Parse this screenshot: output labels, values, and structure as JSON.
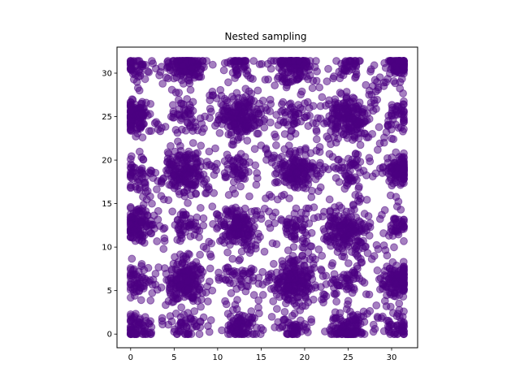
{
  "chart_data": {
    "type": "scatter",
    "title": "Nested sampling",
    "xlabel": "",
    "ylabel": "",
    "xlim": [
      -1.57,
      32.99
    ],
    "ylim": [
      -1.57,
      32.99
    ],
    "xticks": [
      0,
      5,
      10,
      15,
      20,
      25,
      30
    ],
    "yticks": [
      0,
      5,
      10,
      15,
      20,
      25,
      30
    ],
    "grid": false,
    "legend": "none",
    "marker_color": "#4b0082",
    "marker_alpha": 0.5,
    "clusters": [
      {
        "x": 0.6,
        "y": 0.6,
        "n": 70,
        "spread": 0.9
      },
      {
        "x": 6.4,
        "y": 0.6,
        "n": 40,
        "spread": 0.9
      },
      {
        "x": 12.5,
        "y": 0.6,
        "n": 90,
        "spread": 0.9
      },
      {
        "x": 18.7,
        "y": 0.6,
        "n": 40,
        "spread": 0.9
      },
      {
        "x": 25.0,
        "y": 0.6,
        "n": 110,
        "spread": 1.0
      },
      {
        "x": 31.0,
        "y": 0.6,
        "n": 40,
        "spread": 0.8
      },
      {
        "x": 0.6,
        "y": 6.3,
        "n": 50,
        "spread": 0.9
      },
      {
        "x": 6.3,
        "y": 6.1,
        "n": 180,
        "spread": 1.2
      },
      {
        "x": 12.5,
        "y": 6.3,
        "n": 40,
        "spread": 0.9
      },
      {
        "x": 18.7,
        "y": 6.0,
        "n": 190,
        "spread": 1.3
      },
      {
        "x": 25.0,
        "y": 6.3,
        "n": 40,
        "spread": 0.9
      },
      {
        "x": 30.9,
        "y": 6.2,
        "n": 130,
        "spread": 0.9
      },
      {
        "x": 0.6,
        "y": 12.5,
        "n": 110,
        "spread": 0.9
      },
      {
        "x": 6.3,
        "y": 12.5,
        "n": 40,
        "spread": 0.9
      },
      {
        "x": 12.4,
        "y": 12.5,
        "n": 150,
        "spread": 1.1
      },
      {
        "x": 18.7,
        "y": 12.5,
        "n": 40,
        "spread": 0.9
      },
      {
        "x": 24.8,
        "y": 12.0,
        "n": 160,
        "spread": 1.2
      },
      {
        "x": 30.9,
        "y": 12.5,
        "n": 40,
        "spread": 0.8
      },
      {
        "x": 0.6,
        "y": 18.7,
        "n": 40,
        "spread": 0.9
      },
      {
        "x": 6.3,
        "y": 18.7,
        "n": 170,
        "spread": 1.2
      },
      {
        "x": 12.5,
        "y": 18.7,
        "n": 40,
        "spread": 0.9
      },
      {
        "x": 19.0,
        "y": 18.6,
        "n": 150,
        "spread": 1.1
      },
      {
        "x": 25.0,
        "y": 18.7,
        "n": 40,
        "spread": 0.9
      },
      {
        "x": 31.0,
        "y": 18.8,
        "n": 110,
        "spread": 0.8
      },
      {
        "x": 0.6,
        "y": 24.9,
        "n": 130,
        "spread": 0.9
      },
      {
        "x": 6.3,
        "y": 25.0,
        "n": 40,
        "spread": 0.9
      },
      {
        "x": 12.7,
        "y": 25.0,
        "n": 180,
        "spread": 1.2
      },
      {
        "x": 18.7,
        "y": 25.0,
        "n": 40,
        "spread": 0.9
      },
      {
        "x": 25.0,
        "y": 24.9,
        "n": 180,
        "spread": 1.2
      },
      {
        "x": 31.0,
        "y": 25.0,
        "n": 40,
        "spread": 0.8
      },
      {
        "x": 0.6,
        "y": 30.9,
        "n": 40,
        "spread": 0.8
      },
      {
        "x": 6.3,
        "y": 30.9,
        "n": 140,
        "spread": 1.0
      },
      {
        "x": 12.5,
        "y": 30.9,
        "n": 40,
        "spread": 0.8
      },
      {
        "x": 18.8,
        "y": 30.9,
        "n": 140,
        "spread": 1.0
      },
      {
        "x": 25.0,
        "y": 30.9,
        "n": 40,
        "spread": 0.8
      },
      {
        "x": 31.0,
        "y": 31.0,
        "n": 110,
        "spread": 0.7
      }
    ],
    "background_points": 650,
    "domain": [
      0,
      31.4
    ]
  }
}
